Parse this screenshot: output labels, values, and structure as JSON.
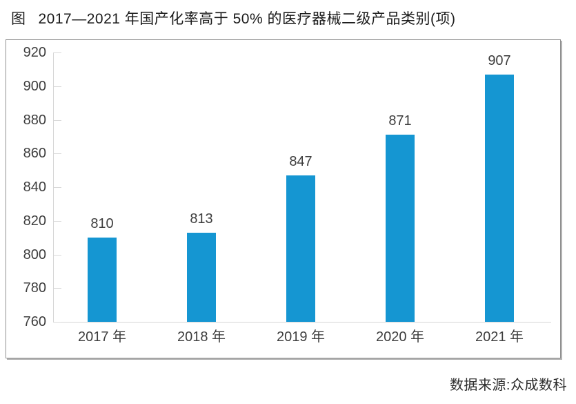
{
  "figure": {
    "label": "图",
    "title": "2017—2021 年国产化率高于 50% 的医疗器械二级产品类别(项)"
  },
  "source": "数据来源:众成数科",
  "colors": {
    "bar": "#1596d2",
    "axis_line": "#d6d6d6",
    "tick": "#d9d9d9",
    "label_text": "#3d3d3d",
    "title_text": "#1a1a1a",
    "frame_border": "#8f8f8f"
  },
  "chart_data": {
    "type": "bar",
    "categories": [
      "2017 年",
      "2018 年",
      "2019 年",
      "2020 年",
      "2021 年"
    ],
    "values": [
      810,
      813,
      847,
      871,
      907
    ],
    "title": "2017—2021 年国产化率高于 50% 的医疗器械二级产品类别(项)",
    "xlabel": "",
    "ylabel": "",
    "ylim": [
      760,
      920
    ],
    "yticks": [
      760,
      780,
      800,
      820,
      840,
      860,
      880,
      900,
      920
    ],
    "grid": false,
    "legend": false,
    "data_labels": true,
    "source": "数据来源:众成数科"
  }
}
